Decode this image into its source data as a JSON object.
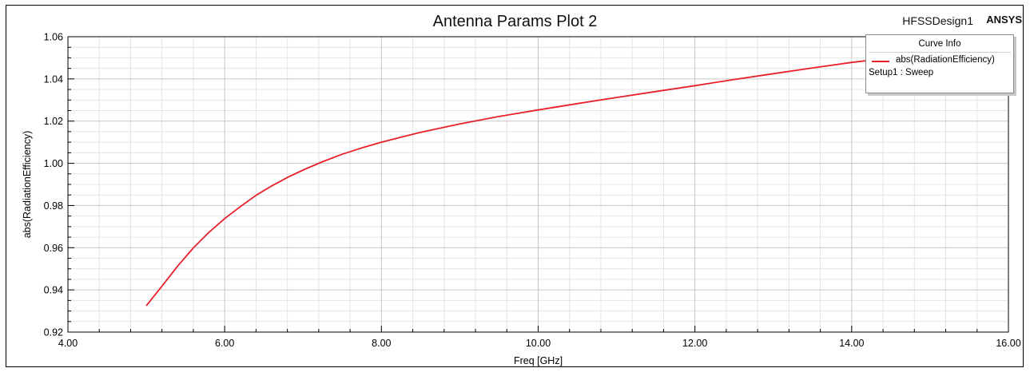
{
  "header": {
    "title": "Antenna Params Plot 2",
    "design": "HFSSDesign1",
    "brand": "ANSYS"
  },
  "legend": {
    "header": "Curve Info",
    "series_name": "abs(RadiationEfficiency)",
    "setup": "Setup1 : Sweep"
  },
  "colors": {
    "series": "#e8202a",
    "grid_major": "#c6c6c6",
    "grid_minor": "#e4e4e4"
  },
  "chart_data": {
    "type": "line",
    "title": "Antenna Params Plot 2",
    "xlabel": "Freq [GHz]",
    "ylabel": "abs(RadiationEfficiency)",
    "xlim": [
      4.0,
      16.0
    ],
    "ylim": [
      0.92,
      1.06
    ],
    "xticks": [
      "4.00",
      "6.00",
      "8.00",
      "10.00",
      "12.00",
      "14.00",
      "16.00"
    ],
    "yticks": [
      "0.92",
      "0.94",
      "0.96",
      "0.98",
      "1.00",
      "1.02",
      "1.04",
      "1.06"
    ],
    "grid": true,
    "legend_position": "top-right",
    "series": [
      {
        "name": "abs(RadiationEfficiency)",
        "x": [
          5.0,
          5.2,
          5.4,
          5.6,
          5.8,
          6.0,
          6.2,
          6.4,
          6.6,
          6.8,
          7.0,
          7.25,
          7.5,
          7.75,
          8.0,
          8.5,
          9.0,
          9.5,
          10.0,
          10.5,
          11.0,
          11.5,
          12.0,
          12.5,
          13.0,
          13.5,
          14.0,
          14.5,
          15.0
        ],
        "y": [
          0.9325,
          0.9418,
          0.9513,
          0.9599,
          0.9673,
          0.9738,
          0.9795,
          0.9848,
          0.9893,
          0.9933,
          0.9968,
          1.0008,
          1.0043,
          1.0073,
          1.01,
          1.0147,
          1.0187,
          1.0222,
          1.0253,
          1.0283,
          1.0312,
          1.034,
          1.0368,
          1.0397,
          1.0425,
          1.0452,
          1.0478,
          1.05,
          1.0515
        ]
      }
    ]
  }
}
